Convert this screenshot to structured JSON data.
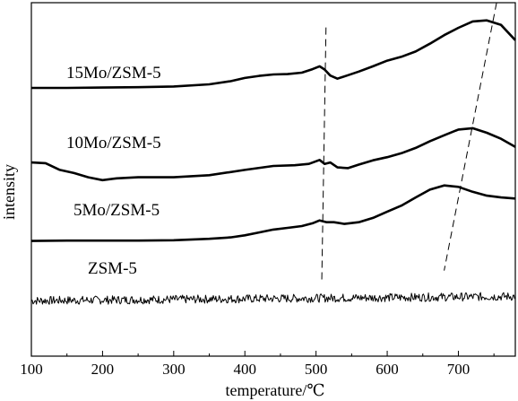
{
  "chart_data": {
    "type": "line",
    "title": "",
    "xlabel": "temperature/℃",
    "ylabel": "intensity",
    "xlim": [
      100,
      780
    ],
    "ylim": [
      0,
      100
    ],
    "xticks": [
      100,
      200,
      300,
      400,
      500,
      600,
      700
    ],
    "yticks_shown": false,
    "grid": false,
    "series": [
      {
        "name": "15Mo/ZSM-5",
        "x": [
          100,
          150,
          200,
          250,
          300,
          350,
          380,
          400,
          420,
          440,
          460,
          480,
          495,
          505,
          512,
          520,
          530,
          545,
          560,
          580,
          600,
          620,
          640,
          660,
          680,
          700,
          720,
          740,
          760,
          780
        ],
        "y": [
          75.9,
          75.9,
          76.0,
          76.1,
          76.3,
          76.9,
          77.8,
          78.7,
          79.3,
          79.7,
          79.8,
          80.2,
          81.2,
          82.0,
          81.1,
          79.4,
          78.5,
          79.5,
          80.5,
          82.0,
          83.6,
          84.7,
          86.2,
          88.4,
          90.8,
          92.9,
          94.7,
          95.0,
          93.7,
          89.4
        ]
      },
      {
        "name": "10Mo/ZSM-5",
        "x": [
          100,
          120,
          140,
          160,
          180,
          200,
          220,
          250,
          300,
          350,
          400,
          440,
          470,
          490,
          505,
          512,
          520,
          530,
          545,
          560,
          580,
          600,
          620,
          640,
          660,
          680,
          700,
          720,
          740,
          760,
          780
        ],
        "y": [
          54.8,
          54.6,
          52.7,
          51.8,
          50.6,
          49.8,
          50.3,
          50.6,
          50.6,
          51.2,
          52.7,
          53.8,
          54.0,
          54.4,
          55.5,
          54.4,
          54.8,
          53.4,
          53.2,
          54.2,
          55.4,
          56.3,
          57.4,
          58.9,
          60.8,
          62.5,
          64.1,
          64.5,
          63.2,
          61.5,
          59.2
        ]
      },
      {
        "name": "5Mo/ZSM-5",
        "x": [
          100,
          150,
          200,
          250,
          300,
          350,
          380,
          400,
          420,
          440,
          460,
          480,
          495,
          505,
          515,
          525,
          540,
          560,
          580,
          600,
          620,
          640,
          660,
          680,
          700,
          720,
          740,
          760,
          780
        ],
        "y": [
          32.6,
          32.7,
          32.7,
          32.7,
          32.8,
          33.2,
          33.6,
          34.2,
          35.0,
          35.8,
          36.3,
          36.8,
          37.6,
          38.4,
          37.9,
          37.9,
          37.4,
          37.9,
          39.1,
          40.9,
          42.6,
          44.9,
          47.1,
          48.3,
          47.9,
          46.5,
          45.4,
          44.9,
          44.6
        ]
      },
      {
        "name": "ZSM-5",
        "x": [
          100,
          780
        ],
        "y": [
          15.7,
          16.9
        ],
        "noisy": true
      }
    ],
    "annotations": [
      {
        "style": "dashed",
        "from": [
          514,
          93.0
        ],
        "to": [
          508,
          20.7
        ]
      },
      {
        "style": "dashed",
        "from": [
          760,
          106.5
        ],
        "to": [
          680,
          24.2
        ]
      }
    ],
    "colors": {
      "line": "#000000",
      "background": "#ffffff"
    }
  }
}
